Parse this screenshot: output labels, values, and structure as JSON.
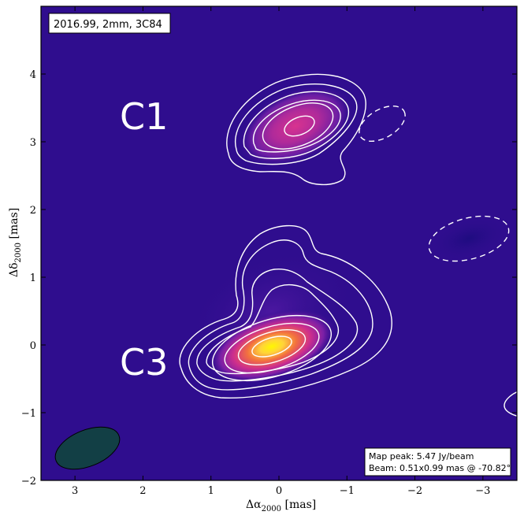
{
  "title_box": "2016.99,  2mm,  3C84",
  "components": [
    {
      "label": "C1",
      "ra": 2.4,
      "dec": 3.3
    },
    {
      "label": "C3",
      "ra": 2.4,
      "dec": -0.27
    }
  ],
  "info_box": {
    "line1": "Map peak: 5.47 Jy/beam",
    "line2": "Beam: 0.51x0.99 mas @ -70.82°"
  },
  "x_axis": {
    "label_delta": "Δα",
    "label_sub": "2000",
    "label_unit": " [mas]",
    "range": [
      3.5,
      -3.5
    ],
    "ticks": [
      {
        "v": 3,
        "t": "3"
      },
      {
        "v": 2,
        "t": "2"
      },
      {
        "v": 1,
        "t": "1"
      },
      {
        "v": 0,
        "t": "0"
      },
      {
        "v": -1,
        "t": "−1"
      },
      {
        "v": -2,
        "t": "−2"
      },
      {
        "v": -3,
        "t": "−3"
      }
    ]
  },
  "y_axis": {
    "label_delta": "Δδ",
    "label_sub": "2000",
    "label_unit": " [mas]",
    "range": [
      -2,
      5
    ],
    "ticks": [
      {
        "v": -2,
        "t": "−2"
      },
      {
        "v": -1,
        "t": "−1"
      },
      {
        "v": 0,
        "t": "0"
      },
      {
        "v": 1,
        "t": "1"
      },
      {
        "v": 2,
        "t": "2"
      },
      {
        "v": 3,
        "t": "3"
      },
      {
        "v": 4,
        "t": "4"
      }
    ]
  },
  "colors": {
    "background": "#2f0d8e",
    "contour": "#ffffff",
    "beam_fill": "#123f45",
    "peak": "#fff700",
    "mid": "#e8368f",
    "low": "#8a1ea8"
  },
  "beam": {
    "ra": 2.95,
    "dec": -1.55,
    "major": 0.99,
    "minor": 0.51,
    "pa_deg": -70.82
  }
}
